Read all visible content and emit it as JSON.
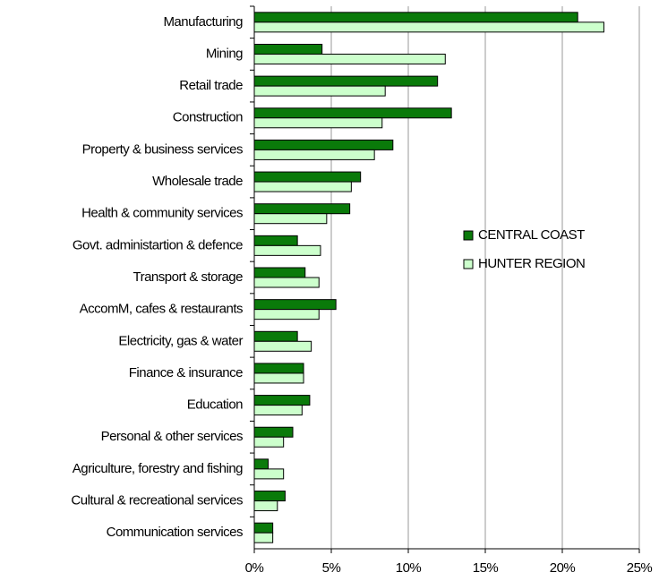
{
  "chart_data": {
    "type": "hbar",
    "categories": [
      "Manufacturing",
      "Mining",
      "Retail trade",
      "Construction",
      "Property & business services",
      "Wholesale trade",
      "Health & community services",
      "Govt. administartion & defence",
      "Transport & storage",
      "AccomM, cafes & restaurants",
      "Electricity, gas & water",
      "Finance & insurance",
      "Education",
      "Personal & other services",
      "Agriculture, forestry and fishing",
      "Cultural & recreational services",
      "Communication services"
    ],
    "series": [
      {
        "name": "CENTRAL COAST",
        "color": "#0a7a0a",
        "values": [
          21.0,
          4.4,
          11.9,
          12.8,
          9.0,
          6.9,
          6.2,
          2.8,
          3.3,
          5.3,
          2.8,
          3.2,
          3.6,
          2.5,
          0.9,
          2.0,
          1.2
        ]
      },
      {
        "name": "HUNTER REGION",
        "color": "#ccffcc",
        "values": [
          22.7,
          12.4,
          8.5,
          8.3,
          7.8,
          6.3,
          4.7,
          4.3,
          4.2,
          4.2,
          3.7,
          3.2,
          3.1,
          1.9,
          1.9,
          1.5,
          1.2
        ]
      }
    ],
    "xlim": [
      0,
      25
    ],
    "xticks": [
      {
        "value": 0,
        "label": "0%"
      },
      {
        "value": 5,
        "label": "5%"
      },
      {
        "value": 10,
        "label": "10%"
      },
      {
        "value": 15,
        "label": "15%"
      },
      {
        "value": 20,
        "label": "20%"
      },
      {
        "value": 25,
        "label": "25%"
      }
    ],
    "grid": true,
    "legend": "right"
  }
}
